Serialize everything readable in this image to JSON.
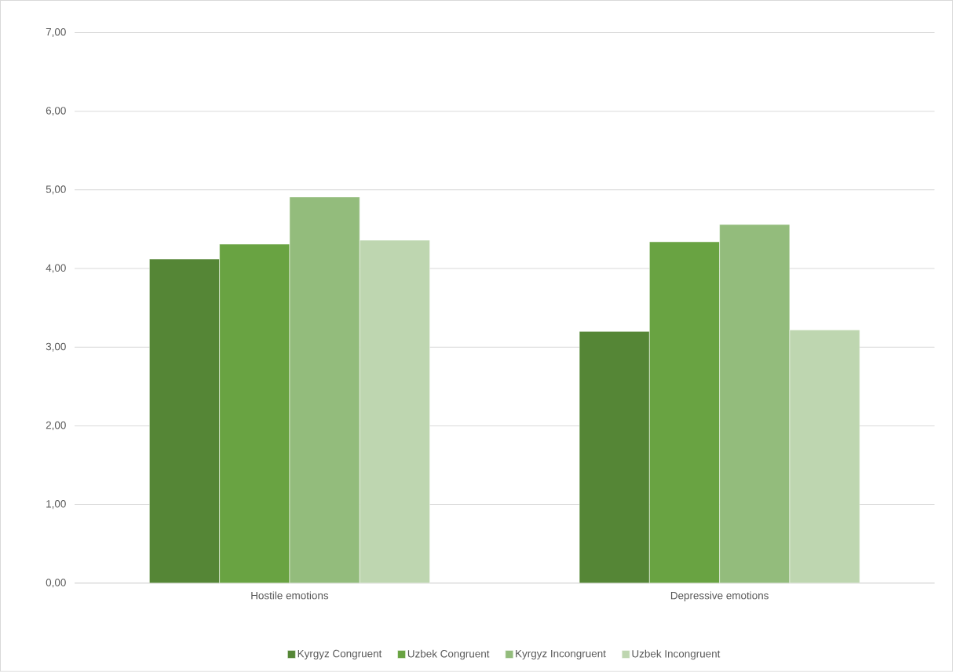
{
  "chart_data": {
    "type": "bar",
    "categories": [
      "Hostile emotions",
      "Depressive emotions"
    ],
    "series": [
      {
        "name": "Kyrgyz Congruent",
        "color": "#558636",
        "values": [
          4.12,
          3.2
        ]
      },
      {
        "name": "Uzbek Congruent",
        "color": "#69a342",
        "values": [
          4.31,
          4.34
        ]
      },
      {
        "name": "Kyrgyz Incongruent",
        "color": "#93bc7c",
        "values": [
          4.91,
          4.56
        ]
      },
      {
        "name": "Uzbek Incongruent",
        "color": "#bed6b0",
        "values": [
          4.36,
          3.22
        ]
      }
    ],
    "ylim": [
      0,
      7
    ],
    "yticks": [
      {
        "value": 0,
        "label": "0,00"
      },
      {
        "value": 1,
        "label": "1,00"
      },
      {
        "value": 2,
        "label": "2,00"
      },
      {
        "value": 3,
        "label": "3,00"
      },
      {
        "value": 4,
        "label": "4,00"
      },
      {
        "value": 5,
        "label": "5,00"
      },
      {
        "value": 6,
        "label": "6,00"
      },
      {
        "value": 7,
        "label": "7,00"
      }
    ],
    "grid": "y",
    "legend": "bottom"
  }
}
